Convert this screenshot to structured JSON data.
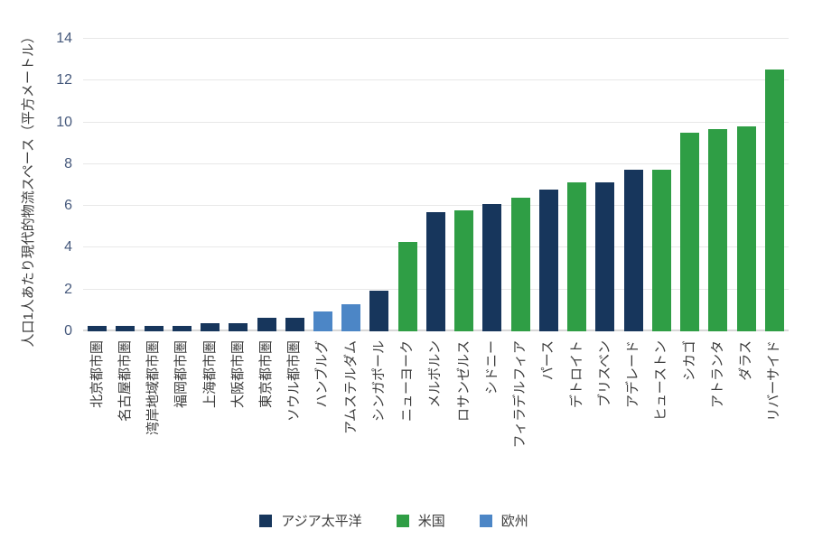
{
  "chart_data": {
    "type": "bar",
    "title": "",
    "xlabel": "",
    "ylabel": "人口1人あたり現代的物流スペース（平方メートル）",
    "ylim": [
      0,
      14
    ],
    "yticks": [
      0,
      2,
      4,
      6,
      8,
      10,
      12,
      14
    ],
    "grid": "horizontal",
    "legend_position": "bottom",
    "categories": [
      "北京都市圏",
      "名古屋都市圏",
      "湾岸地域都市圏",
      "福岡都市圏",
      "上海都市圏",
      "大阪都市圏",
      "東京都市圏",
      "ソウル都市圏",
      "ハンブルグ",
      "アムステルダム",
      "シンガポール",
      "ニューヨーク",
      "メルボルン",
      "ロサンゼルス",
      "シドニー",
      "フィラデルフィア",
      "パース",
      "デトロイト",
      "ブリスベン",
      "アデレード",
      "ヒューストン",
      "シカゴ",
      "アトランタ",
      "ダラス",
      "リバーサイド"
    ],
    "values": [
      0.25,
      0.25,
      0.25,
      0.25,
      0.4,
      0.4,
      0.65,
      0.65,
      0.95,
      1.3,
      1.95,
      4.3,
      5.7,
      5.8,
      6.1,
      6.4,
      6.8,
      7.15,
      7.15,
      7.75,
      7.75,
      9.5,
      9.7,
      9.8,
      12.55
    ],
    "regions": [
      "apac",
      "apac",
      "apac",
      "apac",
      "apac",
      "apac",
      "apac",
      "apac",
      "europe",
      "europe",
      "apac",
      "us",
      "apac",
      "us",
      "apac",
      "us",
      "apac",
      "us",
      "apac",
      "apac",
      "us",
      "us",
      "us",
      "us",
      "us"
    ],
    "legend": [
      {
        "key": "apac",
        "label": "アジア太平洋",
        "color": "#17365C"
      },
      {
        "key": "us",
        "label": "米国",
        "color": "#2F9E45"
      },
      {
        "key": "europe",
        "label": "欧州",
        "color": "#4C86C6"
      }
    ]
  }
}
